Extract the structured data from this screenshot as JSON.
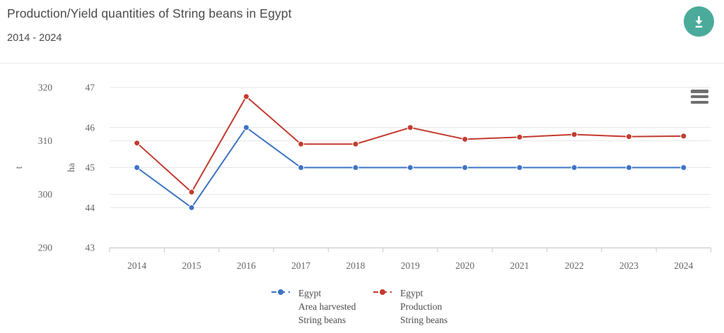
{
  "chart_data": {
    "type": "line",
    "title": "Production/Yield quantities of String beans in Egypt",
    "subtitle": "2014 - 2024",
    "categories": [
      "2014",
      "2015",
      "2016",
      "2017",
      "2018",
      "2019",
      "2020",
      "2021",
      "2022",
      "2023",
      "2024"
    ],
    "series": [
      {
        "name": "Egypt Area harvested String beans",
        "axis": "ha",
        "color": "#3d73c5",
        "values": [
          45,
          44,
          46,
          45,
          45,
          45,
          45,
          45,
          45,
          45,
          45
        ]
      },
      {
        "name": "Egypt Production String beans",
        "axis": "t",
        "color": "#c33b2f",
        "values": [
          309.6,
          300.4,
          318.3,
          309.4,
          309.4,
          312.5,
          310.3,
          310.7,
          311.2,
          310.8,
          310.9
        ]
      }
    ],
    "axes": {
      "t": {
        "title": "t",
        "ticks": [
          290,
          300,
          310,
          320
        ],
        "range": [
          290,
          320
        ]
      },
      "ha": {
        "title": "ha",
        "ticks": [
          43,
          44,
          45,
          46,
          47
        ],
        "range": [
          43,
          47
        ]
      }
    },
    "grid": true,
    "legend_position": "bottom-center",
    "xlabel": "",
    "ylabel_outer": "t",
    "ylabel_inner": "ha"
  },
  "legend": {
    "items": [
      {
        "lines": [
          "Egypt",
          "Area harvested",
          "String beans"
        ],
        "color": "#3d73c5"
      },
      {
        "lines": [
          "Egypt",
          "Production",
          "String beans"
        ],
        "color": "#c33b2f"
      }
    ]
  },
  "icons": {
    "download": "download-arrow-icon",
    "context_menu": "hamburger-menu-icon"
  },
  "colors": {
    "accent_teal": "#4bab9b",
    "series_blue": "#3d73c5",
    "series_red": "#c33b2f",
    "grid": "#e6e6e6",
    "axis_line": "#c9c9c9",
    "tick_text": "#666666",
    "title_text": "#4a4a4a"
  }
}
